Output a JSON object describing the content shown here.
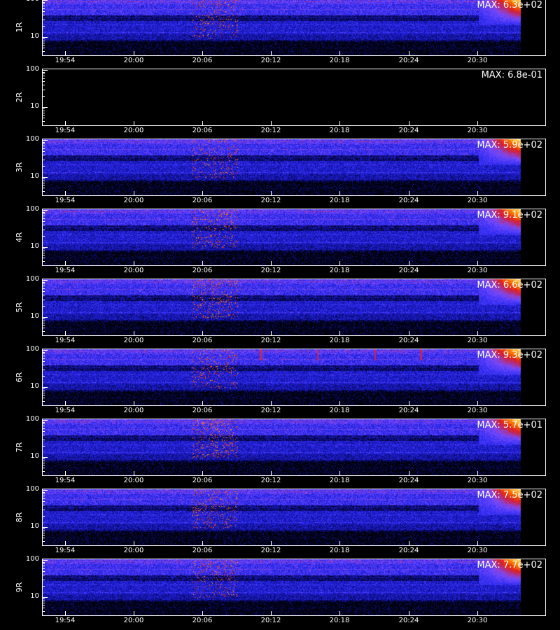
{
  "chart_data": {
    "type": "heatmap",
    "colormap": [
      "#000000",
      "#1010a0",
      "#2a2af0",
      "#7a4cff",
      "#e01818",
      "#ff8a00",
      "#ffe680"
    ],
    "x": {
      "start": "19:52",
      "end": "20:36",
      "tick_labels": [
        "19:54",
        "20:00",
        "20:06",
        "20:12",
        "20:18",
        "20:24",
        "20:30"
      ],
      "tick_values": [
        "19:54",
        "20:00",
        "20:06",
        "20:12",
        "20:18",
        "20:24",
        "20:30"
      ]
    },
    "y": {
      "scale": "log",
      "range": [
        3,
        110
      ],
      "tick_labels": [
        "100",
        "10"
      ],
      "tick_values": [
        100,
        10
      ]
    },
    "panels": [
      {
        "label": "1R",
        "max_text": "MAX: 6.3e+02",
        "active": true,
        "burst_strength": 0.65,
        "spikes": []
      },
      {
        "label": "2R",
        "max_text": "MAX: 6.8e-01",
        "active": false,
        "burst_strength": 0,
        "spikes": []
      },
      {
        "label": "3R",
        "max_text": "MAX: 5.9e+02",
        "active": true,
        "burst_strength": 0.6,
        "spikes": []
      },
      {
        "label": "4R",
        "max_text": "MAX: 9.1e+02",
        "active": true,
        "burst_strength": 0.7,
        "spikes": []
      },
      {
        "label": "5R",
        "max_text": "MAX: 6.6e+02",
        "active": true,
        "burst_strength": 0.85,
        "spikes": []
      },
      {
        "label": "6R",
        "max_text": "MAX: 9.3e+02",
        "active": true,
        "burst_strength": 0.7,
        "spikes": [
          "20:11",
          "20:16",
          "20:21",
          "20:25"
        ]
      },
      {
        "label": "7R",
        "max_text": "MAX: 5.7e+01",
        "active": true,
        "burst_strength": 1.0,
        "spikes": []
      },
      {
        "label": "8R",
        "max_text": "MAX: 7.5e+02",
        "active": true,
        "burst_strength": 0.75,
        "spikes": []
      },
      {
        "label": "9R",
        "max_text": "MAX: 7.7e+02",
        "active": true,
        "burst_strength": 0.7,
        "spikes": []
      }
    ]
  }
}
